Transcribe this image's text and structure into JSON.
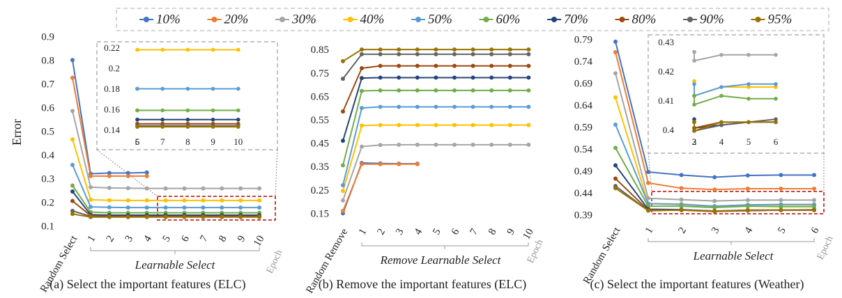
{
  "chart_data": [
    {
      "type": "line",
      "ylabel": "Error",
      "xlabel": "Learnable Select",
      "epoch_label": "Epoch",
      "caption": "(a) Select the important features (ELC)",
      "categories": [
        "Random Select",
        "1",
        "2",
        "3",
        "4",
        "5",
        "6",
        "7",
        "8",
        "9",
        "10"
      ],
      "ylim": [
        0.1,
        0.9
      ],
      "yticks": [
        0.1,
        0.2,
        0.3,
        0.4,
        0.5,
        0.6,
        0.7,
        0.8,
        0.9
      ],
      "series": [
        {
          "name": "10%",
          "color": "#4472c4",
          "values": [
            0.805,
            0.325,
            0.328,
            0.328,
            0.33,
            null,
            null,
            null,
            null,
            null,
            null
          ]
        },
        {
          "name": "20%",
          "color": "#ed7d31",
          "values": [
            0.73,
            0.315,
            0.315,
            0.315,
            0.315,
            null,
            null,
            null,
            null,
            null,
            null
          ]
        },
        {
          "name": "30%",
          "color": "#a5a5a5",
          "values": [
            0.59,
            0.268,
            0.265,
            0.264,
            0.263,
            0.263,
            0.263,
            0.263,
            0.263,
            0.263,
            0.263
          ]
        },
        {
          "name": "40%",
          "color": "#ffc000",
          "values": [
            0.47,
            0.215,
            0.213,
            0.212,
            0.212,
            0.212,
            0.212,
            0.212,
            0.212,
            0.212,
            0.212
          ]
        },
        {
          "name": "50%",
          "color": "#5b9bd5",
          "values": [
            0.362,
            0.185,
            0.183,
            0.182,
            0.182,
            0.182,
            0.182,
            0.182,
            0.182,
            0.182,
            0.182
          ]
        },
        {
          "name": "60%",
          "color": "#70ad47",
          "values": [
            0.275,
            0.163,
            0.16,
            0.16,
            0.16,
            0.16,
            0.16,
            0.16,
            0.16,
            0.16,
            0.16
          ]
        },
        {
          "name": "70%",
          "color": "#264478",
          "values": [
            0.25,
            0.152,
            0.15,
            0.15,
            0.15,
            0.15,
            0.15,
            0.15,
            0.15,
            0.15,
            0.15
          ]
        },
        {
          "name": "80%",
          "color": "#9e480e",
          "values": [
            0.21,
            0.148,
            0.145,
            0.145,
            0.145,
            0.145,
            0.145,
            0.145,
            0.145,
            0.145,
            0.145
          ]
        },
        {
          "name": "90%",
          "color": "#636363",
          "values": [
            0.168,
            0.145,
            0.143,
            0.143,
            0.143,
            0.143,
            0.143,
            0.143,
            0.143,
            0.143,
            0.143
          ]
        },
        {
          "name": "95%",
          "color": "#997300",
          "values": [
            0.155,
            0.142,
            0.142,
            0.142,
            0.142,
            0.142,
            0.142,
            0.142,
            0.142,
            0.142,
            0.142
          ]
        }
      ]
    },
    {
      "type": "line",
      "categories": [
        "5",
        "6",
        "7",
        "8",
        "9",
        "10"
      ],
      "ylim": [
        0.135,
        0.225
      ],
      "yticks": [
        0.14,
        0.16,
        0.18,
        {
          "value": 0.2,
          "label": "0.2"
        },
        0.22
      ],
      "series": [
        {
          "name": "40%",
          "color": "#ffc000",
          "values": [
            0.219,
            0.219,
            0.219,
            0.219,
            0.219,
            0.219
          ]
        },
        {
          "name": "50%",
          "color": "#5b9bd5",
          "values": [
            0.181,
            0.181,
            0.181,
            0.181,
            0.181,
            0.181
          ]
        },
        {
          "name": "60%",
          "color": "#70ad47",
          "values": [
            0.16,
            0.16,
            0.16,
            0.16,
            0.16,
            0.16
          ]
        },
        {
          "name": "70%",
          "color": "#264478",
          "values": [
            0.151,
            0.151,
            0.151,
            0.151,
            0.151,
            0.151
          ]
        },
        {
          "name": "80%",
          "color": "#9e480e",
          "values": [
            0.147,
            0.147,
            0.147,
            0.147,
            0.147,
            0.147
          ]
        },
        {
          "name": "90%",
          "color": "#636363",
          "values": [
            0.145,
            0.145,
            0.145,
            0.145,
            0.145,
            0.145
          ]
        },
        {
          "name": "95%",
          "color": "#997300",
          "values": [
            0.144,
            0.144,
            0.144,
            0.144,
            0.144,
            0.144
          ]
        }
      ]
    },
    {
      "type": "line",
      "xlabel": "Remove Learnable Select",
      "epoch_label": "Epoch",
      "caption": "(b) Remove the important features (ELC)",
      "categories": [
        "Random Remove",
        "1",
        "2",
        "3",
        "4",
        "5",
        "6",
        "7",
        "8",
        "9",
        "10"
      ],
      "ylim": [
        0.15,
        0.9
      ],
      "yticks": [
        0.15,
        0.25,
        0.35,
        0.45,
        0.55,
        0.65,
        0.75,
        0.85
      ],
      "series": [
        {
          "name": "10%",
          "color": "#4472c4",
          "values": [
            0.155,
            0.37,
            0.368,
            0.367,
            0.367,
            null,
            null,
            null,
            null,
            null,
            null
          ]
        },
        {
          "name": "20%",
          "color": "#ed7d31",
          "values": [
            0.165,
            0.365,
            0.365,
            0.365,
            0.365,
            null,
            null,
            null,
            null,
            null,
            null
          ]
        },
        {
          "name": "30%",
          "color": "#a5a5a5",
          "values": [
            0.21,
            0.44,
            0.447,
            0.448,
            0.448,
            0.448,
            0.448,
            0.448,
            0.448,
            0.448,
            0.448
          ]
        },
        {
          "name": "40%",
          "color": "#ffc000",
          "values": [
            0.25,
            0.53,
            0.532,
            0.532,
            0.532,
            0.532,
            0.532,
            0.532,
            0.532,
            0.532,
            0.532
          ]
        },
        {
          "name": "50%",
          "color": "#5b9bd5",
          "values": [
            0.275,
            0.605,
            0.61,
            0.61,
            0.61,
            0.61,
            0.61,
            0.61,
            0.61,
            0.61,
            0.61
          ]
        },
        {
          "name": "60%",
          "color": "#70ad47",
          "values": [
            0.36,
            0.678,
            0.68,
            0.68,
            0.68,
            0.68,
            0.68,
            0.68,
            0.68,
            0.68,
            0.68
          ]
        },
        {
          "name": "70%",
          "color": "#264478",
          "values": [
            0.465,
            0.733,
            0.735,
            0.735,
            0.735,
            0.735,
            0.735,
            0.735,
            0.735,
            0.735,
            0.735
          ]
        },
        {
          "name": "80%",
          "color": "#9e480e",
          "values": [
            0.59,
            0.775,
            0.785,
            0.785,
            0.785,
            0.785,
            0.785,
            0.785,
            0.785,
            0.785,
            0.785
          ]
        },
        {
          "name": "90%",
          "color": "#636363",
          "values": [
            0.73,
            0.835,
            0.835,
            0.835,
            0.835,
            0.835,
            0.835,
            0.835,
            0.835,
            0.835,
            0.835
          ]
        },
        {
          "name": "95%",
          "color": "#997300",
          "values": [
            0.805,
            0.855,
            0.855,
            0.855,
            0.855,
            0.855,
            0.855,
            0.855,
            0.855,
            0.855,
            0.855
          ]
        }
      ]
    },
    {
      "type": "line",
      "xlabel": "Learnable Select",
      "epoch_label": "Epoch",
      "caption": "(c) Select the important features (Weather)",
      "categories": [
        "Random Select",
        "1",
        "2",
        "3",
        "4",
        "5",
        "6"
      ],
      "ylim": [
        0.39,
        0.8
      ],
      "yticks": [
        0.39,
        0.44,
        0.49,
        0.54,
        0.59,
        0.64,
        0.69,
        0.74,
        0.79
      ],
      "series": [
        {
          "name": "10%",
          "color": "#4472c4",
          "values": [
            0.787,
            0.49,
            0.483,
            0.478,
            0.482,
            0.483,
            0.483
          ]
        },
        {
          "name": "20%",
          "color": "#ed7d31",
          "values": [
            0.763,
            0.465,
            0.453,
            0.45,
            0.452,
            0.452,
            0.452
          ]
        },
        {
          "name": "30%",
          "color": "#a5a5a5",
          "values": [
            0.715,
            0.43,
            0.427,
            0.424,
            0.426,
            0.426,
            0.426
          ]
        },
        {
          "name": "40%",
          "color": "#ffc000",
          "values": [
            0.66,
            0.418,
            0.417,
            0.412,
            0.415,
            0.415,
            0.415
          ]
        },
        {
          "name": "50%",
          "color": "#5b9bd5",
          "values": [
            0.598,
            0.418,
            0.416,
            0.412,
            0.415,
            0.416,
            0.416
          ]
        },
        {
          "name": "60%",
          "color": "#70ad47",
          "values": [
            0.545,
            0.412,
            0.412,
            0.409,
            0.412,
            0.411,
            0.411
          ]
        },
        {
          "name": "70%",
          "color": "#264478",
          "values": [
            0.505,
            0.405,
            0.404,
            0.401,
            0.402,
            0.403,
            0.403
          ]
        },
        {
          "name": "80%",
          "color": "#9e480e",
          "values": [
            0.475,
            0.403,
            0.403,
            0.401,
            0.403,
            0.403,
            0.403
          ]
        },
        {
          "name": "90%",
          "color": "#636363",
          "values": [
            0.458,
            0.402,
            0.403,
            0.4,
            0.402,
            0.403,
            0.404
          ]
        },
        {
          "name": "95%",
          "color": "#997300",
          "values": [
            0.453,
            0.402,
            0.403,
            0.4,
            0.403,
            0.403,
            0.403
          ]
        }
      ]
    },
    {
      "type": "line",
      "categories": [
        "2",
        "3",
        "4",
        "5",
        "6"
      ],
      "ylim": [
        0.398,
        0.432
      ],
      "yticks": [
        {
          "value": 0.4,
          "label": "0.4"
        },
        0.41,
        0.42,
        0.43
      ],
      "series": [
        {
          "name": "30%",
          "color": "#a5a5a5",
          "values": [
            0.427,
            0.424,
            0.426,
            0.426,
            0.426
          ]
        },
        {
          "name": "40%",
          "color": "#ffc000",
          "values": [
            0.417,
            0.412,
            0.415,
            0.415,
            0.415
          ]
        },
        {
          "name": "50%",
          "color": "#5b9bd5",
          "values": [
            0.416,
            0.412,
            0.415,
            0.416,
            0.416
          ]
        },
        {
          "name": "60%",
          "color": "#70ad47",
          "values": [
            0.412,
            0.409,
            0.412,
            0.411,
            0.411
          ]
        },
        {
          "name": "70%",
          "color": "#264478",
          "values": [
            0.404,
            0.401,
            0.402,
            0.403,
            0.403
          ]
        },
        {
          "name": "80%",
          "color": "#9e480e",
          "values": [
            0.403,
            0.401,
            0.403,
            0.403,
            0.403
          ]
        },
        {
          "name": "90%",
          "color": "#636363",
          "values": [
            0.403,
            0.4,
            0.402,
            0.403,
            0.404
          ]
        },
        {
          "name": "95%",
          "color": "#997300",
          "values": [
            0.403,
            0.4,
            0.403,
            0.403,
            0.403
          ]
        }
      ]
    }
  ]
}
